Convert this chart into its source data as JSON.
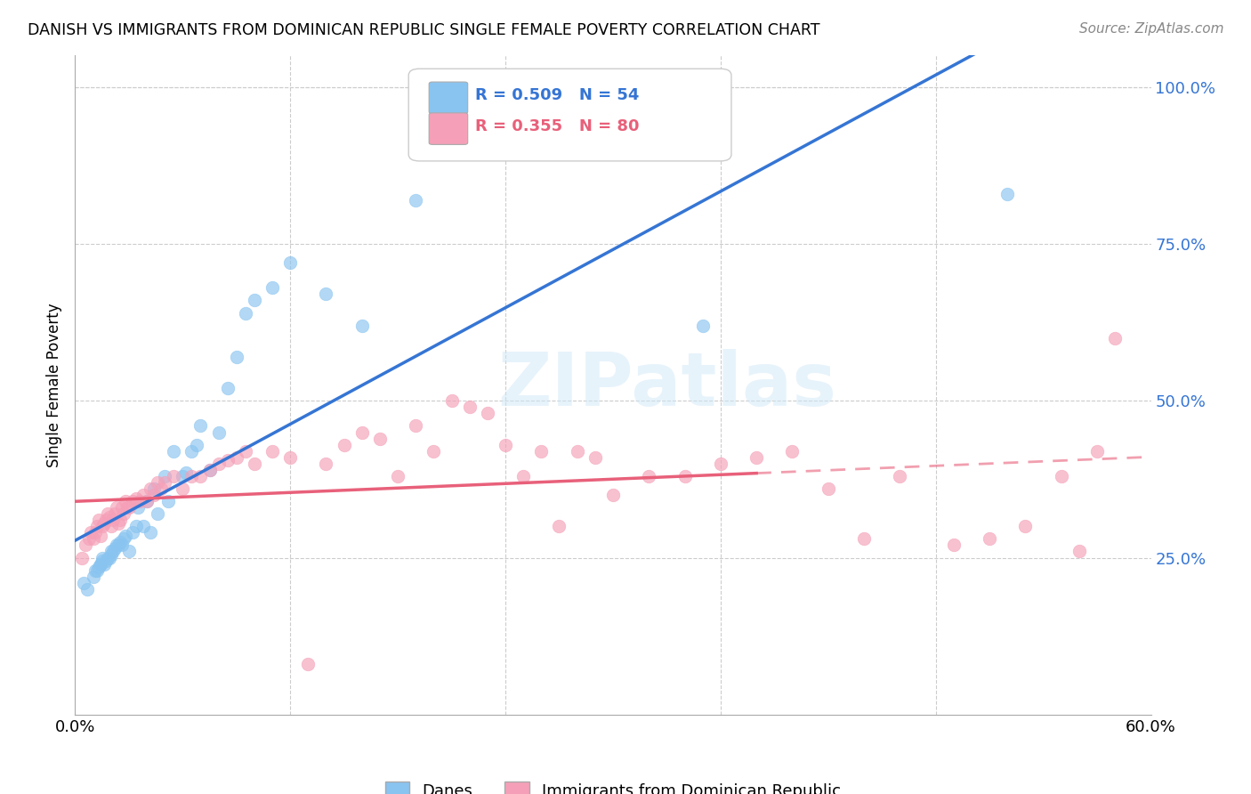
{
  "title": "DANISH VS IMMIGRANTS FROM DOMINICAN REPUBLIC SINGLE FEMALE POVERTY CORRELATION CHART",
  "source": "Source: ZipAtlas.com",
  "ylabel": "Single Female Poverty",
  "yticks": [
    "25.0%",
    "50.0%",
    "75.0%",
    "100.0%"
  ],
  "ytick_vals": [
    25.0,
    50.0,
    75.0,
    100.0
  ],
  "xlim": [
    0.0,
    0.6
  ],
  "ylim": [
    0.0,
    105.0
  ],
  "legend_label1": "Danes",
  "legend_label2": "Immigrants from Dominican Republic",
  "r1": "0.509",
  "n1": "54",
  "r2": "0.355",
  "n2": "80",
  "color_blue": "#89c4f0",
  "color_pink": "#f5a0b8",
  "color_blue_line": "#3575d4",
  "color_pink_line": "#e8607a",
  "watermark": "ZIPatlas",
  "blue_x": [
    0.005,
    0.007,
    0.01,
    0.011,
    0.012,
    0.013,
    0.014,
    0.014,
    0.015,
    0.015,
    0.016,
    0.017,
    0.018,
    0.019,
    0.02,
    0.02,
    0.021,
    0.022,
    0.023,
    0.024,
    0.025,
    0.026,
    0.027,
    0.028,
    0.03,
    0.032,
    0.034,
    0.035,
    0.038,
    0.04,
    0.042,
    0.044,
    0.046,
    0.05,
    0.052,
    0.055,
    0.06,
    0.062,
    0.065,
    0.068,
    0.07,
    0.075,
    0.08,
    0.085,
    0.09,
    0.095,
    0.1,
    0.11,
    0.12,
    0.14,
    0.16,
    0.19,
    0.35,
    0.52
  ],
  "blue_y": [
    21.0,
    20.0,
    22.0,
    23.0,
    23.0,
    23.5,
    24.0,
    24.0,
    24.5,
    25.0,
    24.0,
    24.5,
    25.0,
    25.0,
    25.5,
    26.0,
    26.0,
    26.5,
    27.0,
    27.0,
    27.5,
    27.0,
    28.0,
    28.5,
    26.0,
    29.0,
    30.0,
    33.0,
    30.0,
    34.0,
    29.0,
    36.0,
    32.0,
    38.0,
    34.0,
    42.0,
    38.0,
    38.5,
    42.0,
    43.0,
    46.0,
    39.0,
    45.0,
    52.0,
    57.0,
    64.0,
    66.0,
    68.0,
    72.0,
    67.0,
    62.0,
    82.0,
    62.0,
    83.0
  ],
  "pink_x": [
    0.004,
    0.006,
    0.008,
    0.009,
    0.01,
    0.011,
    0.012,
    0.013,
    0.014,
    0.015,
    0.016,
    0.017,
    0.018,
    0.019,
    0.02,
    0.021,
    0.022,
    0.023,
    0.024,
    0.025,
    0.026,
    0.027,
    0.028,
    0.029,
    0.03,
    0.032,
    0.034,
    0.036,
    0.038,
    0.04,
    0.042,
    0.044,
    0.046,
    0.048,
    0.05,
    0.055,
    0.06,
    0.065,
    0.07,
    0.075,
    0.08,
    0.085,
    0.09,
    0.095,
    0.1,
    0.11,
    0.12,
    0.13,
    0.14,
    0.15,
    0.16,
    0.17,
    0.18,
    0.19,
    0.2,
    0.21,
    0.22,
    0.23,
    0.24,
    0.25,
    0.26,
    0.27,
    0.28,
    0.29,
    0.3,
    0.32,
    0.34,
    0.36,
    0.38,
    0.4,
    0.42,
    0.44,
    0.46,
    0.49,
    0.51,
    0.53,
    0.55,
    0.56,
    0.57,
    0.58
  ],
  "pink_y": [
    25.0,
    27.0,
    28.0,
    29.0,
    28.0,
    29.0,
    30.0,
    31.0,
    28.5,
    30.0,
    30.5,
    31.0,
    32.0,
    31.5,
    30.0,
    31.0,
    32.0,
    33.0,
    30.5,
    31.0,
    33.0,
    32.0,
    34.0,
    33.0,
    33.0,
    34.0,
    34.5,
    34.0,
    35.0,
    34.0,
    36.0,
    35.0,
    37.0,
    36.0,
    37.0,
    38.0,
    36.0,
    38.0,
    38.0,
    39.0,
    40.0,
    40.5,
    41.0,
    42.0,
    40.0,
    42.0,
    41.0,
    8.0,
    40.0,
    43.0,
    45.0,
    44.0,
    38.0,
    46.0,
    42.0,
    50.0,
    49.0,
    48.0,
    43.0,
    38.0,
    42.0,
    30.0,
    42.0,
    41.0,
    35.0,
    38.0,
    38.0,
    40.0,
    41.0,
    42.0,
    36.0,
    28.0,
    38.0,
    27.0,
    28.0,
    30.0,
    38.0,
    26.0,
    42.0,
    60.0
  ]
}
